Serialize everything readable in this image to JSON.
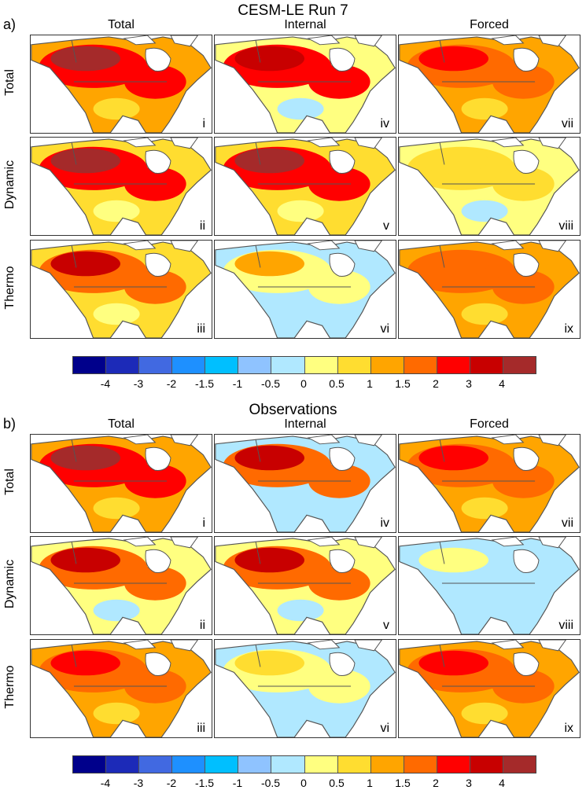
{
  "section_a": {
    "label": "a)",
    "title": "CESM-LE Run 7"
  },
  "section_b": {
    "label": "b)",
    "title": "Observations"
  },
  "columns": [
    "Total",
    "Internal",
    "Forced"
  ],
  "rows": [
    "Total",
    "Dynamic",
    "Thermo"
  ],
  "panel_labels": [
    "i",
    "ii",
    "iii",
    "iv",
    "v",
    "vi",
    "vii",
    "viii",
    "ix"
  ],
  "colorbar": {
    "ticks": [
      "-4",
      "-3",
      "-2",
      "-1.5",
      "-1",
      "-0.5",
      "0",
      "0.5",
      "1",
      "1.5",
      "2",
      "3",
      "4"
    ],
    "colors": [
      "#00008b",
      "#1c2ab8",
      "#4169e1",
      "#1e90ff",
      "#00bfff",
      "#8fc3ff",
      "#b0e8ff",
      "#ffff80",
      "#ffdd30",
      "#ffa500",
      "#ff6a00",
      "#ff0000",
      "#c80000",
      "#a52a2a"
    ]
  }
}
